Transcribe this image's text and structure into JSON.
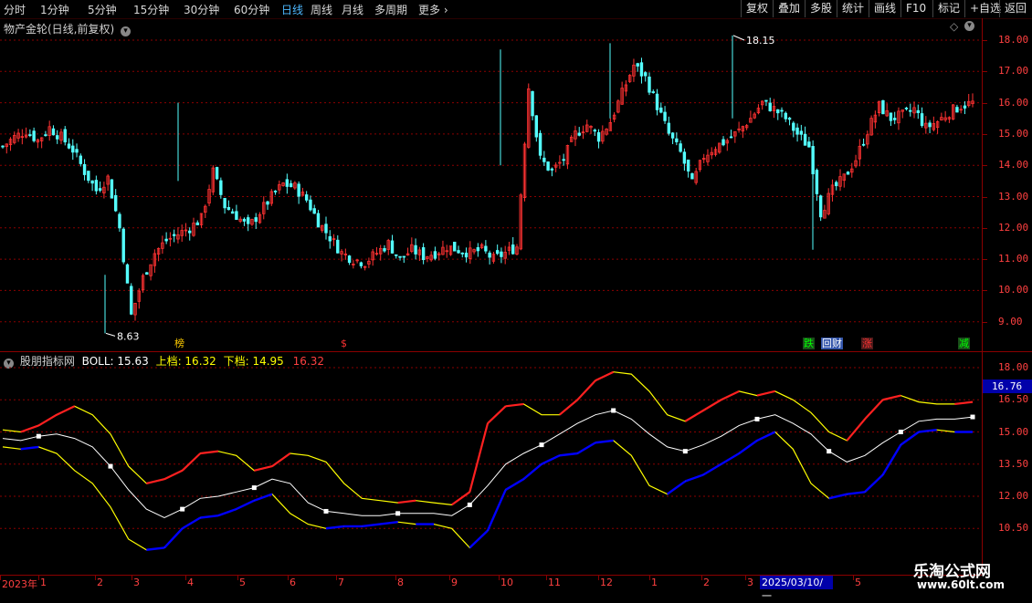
{
  "toolbar": {
    "periods": [
      "分时",
      "1分钟",
      "5分钟",
      "15分钟",
      "30分钟",
      "60分钟",
      "日线",
      "周线",
      "月线",
      "多周期",
      "更多"
    ],
    "active_period": "日线",
    "buttons": [
      "复权",
      "叠加",
      "多股",
      "统计",
      "画线",
      "F10",
      "标记",
      "+自选",
      "返回"
    ]
  },
  "main_chart": {
    "title": "物产金轮(日线,前复权)",
    "y_ticks": [
      "18.00",
      "17.00",
      "16.00",
      "15.00",
      "14.00",
      "13.00",
      "12.00",
      "11.00",
      "10.00",
      "9.00"
    ],
    "high_label": "18.15",
    "low_label": "8.63",
    "markers": [
      {
        "text": "榜",
        "color": "#ffcc00",
        "bg": "#000000"
      },
      {
        "text": "$",
        "color": "#ff3333",
        "bg": "#000000"
      },
      {
        "text": "跌",
        "color": "#00ff00",
        "bg": "#1a4d1a"
      },
      {
        "text": "回",
        "color": "#ffffff",
        "bg": "#3355aa"
      },
      {
        "text": "财",
        "color": "#ffffff",
        "bg": "#3355aa"
      },
      {
        "text": "涨",
        "color": "#ff3333",
        "bg": "#4d1a1a"
      },
      {
        "text": "减",
        "color": "#00ff00",
        "bg": "#1a4d1a"
      }
    ]
  },
  "indicator": {
    "name": "股朋指标网",
    "boll_label": "BOLL: 15.63",
    "upper_label": "上档: 16.32",
    "lower_label": "下档: 14.95",
    "extra_value": "16.32",
    "y_ticks": [
      "18.00",
      "16.50",
      "15.00",
      "13.50",
      "12.00",
      "10.50"
    ],
    "current_value": "16.76"
  },
  "date_axis": {
    "labels": [
      "2023年",
      "1",
      "2",
      "3",
      "4",
      "5",
      "6",
      "7",
      "8",
      "9",
      "10",
      "11",
      "12",
      "1",
      "2",
      "3",
      "5"
    ],
    "cursor_date": "2025/03/10/一"
  },
  "watermark": {
    "name": "乐淘公式网",
    "url": "www.60lt.com"
  },
  "colors": {
    "up": "#ff3232",
    "down": "#54ffff",
    "upper_band": "#ffff00",
    "lower_band": "#0000ff",
    "mid": "#ffffff"
  },
  "chart_data": {
    "type": "candlestick",
    "y_range": [
      8.5,
      18.4
    ],
    "close_path": [
      14.6,
      14.9,
      15.1,
      14.8,
      15.2,
      14.9,
      14.5,
      13.8,
      13.2,
      13.6,
      12.0,
      9.2,
      10.4,
      11.2,
      11.6,
      11.8,
      12.0,
      12.3,
      13.8,
      12.7,
      12.4,
      12.0,
      12.5,
      13.0,
      13.4,
      13.3,
      12.9,
      12.2,
      11.7,
      11.2,
      11.0,
      10.9,
      11.2,
      11.5,
      11.0,
      11.3,
      11.1,
      11.2,
      11.4,
      11.3,
      11.2,
      11.3,
      11.0,
      11.2,
      11.4,
      16.5,
      14.2,
      13.8,
      14.2,
      15.0,
      15.3,
      14.9,
      15.4,
      16.3,
      17.2,
      16.8,
      15.9,
      15.0,
      14.4,
      13.4,
      14.3,
      14.6,
      14.8,
      15.1,
      15.5,
      16.0,
      15.8,
      15.5,
      15.0,
      14.6,
      12.5,
      13.2,
      13.6,
      14.2,
      15.1,
      15.9,
      15.5,
      15.6,
      15.8,
      15.2,
      15.4,
      15.7,
      15.9,
      16.0
    ],
    "boll": {
      "upper": [
        15.1,
        15.0,
        15.3,
        15.8,
        16.2,
        15.8,
        14.9,
        13.4,
        12.6,
        12.8,
        13.2,
        14.0,
        14.1,
        13.9,
        13.2,
        13.4,
        14.0,
        13.9,
        13.6,
        12.6,
        11.9,
        11.8,
        11.7,
        11.8,
        11.7,
        11.6,
        12.2,
        15.4,
        16.2,
        16.3,
        15.8,
        15.8,
        16.5,
        17.4,
        17.8,
        17.7,
        16.9,
        15.8,
        15.5,
        16.0,
        16.5,
        16.9,
        16.7,
        16.9,
        16.5,
        15.9,
        15.0,
        14.6,
        15.6,
        16.5,
        16.7,
        16.4,
        16.3,
        16.3,
        16.4
      ],
      "mid": [
        14.7,
        14.6,
        14.8,
        14.9,
        14.7,
        14.3,
        13.4,
        12.3,
        11.4,
        11.0,
        11.4,
        11.9,
        12.0,
        12.2,
        12.4,
        12.8,
        12.6,
        11.7,
        11.3,
        11.2,
        11.1,
        11.1,
        11.2,
        11.2,
        11.2,
        11.1,
        11.6,
        12.5,
        13.5,
        14.0,
        14.4,
        14.9,
        15.4,
        15.8,
        16.0,
        15.6,
        14.9,
        14.3,
        14.1,
        14.4,
        14.8,
        15.3,
        15.6,
        15.8,
        15.4,
        14.9,
        14.1,
        13.6,
        13.9,
        14.5,
        15.0,
        15.5,
        15.6,
        15.6,
        15.7
      ],
      "lower": [
        14.3,
        14.2,
        14.3,
        14.0,
        13.2,
        12.6,
        11.5,
        10.0,
        9.5,
        9.6,
        10.5,
        11.0,
        11.1,
        11.4,
        11.8,
        12.1,
        11.2,
        10.7,
        10.5,
        10.6,
        10.6,
        10.7,
        10.8,
        10.7,
        10.7,
        10.5,
        9.6,
        10.4,
        12.3,
        12.8,
        13.5,
        13.9,
        14.0,
        14.5,
        14.6,
        13.9,
        12.5,
        12.1,
        12.7,
        13.0,
        13.5,
        14.0,
        14.6,
        15.0,
        14.2,
        12.6,
        11.9,
        12.1,
        12.2,
        13.0,
        14.4,
        15.0,
        15.1,
        15.0,
        15.0
      ]
    }
  }
}
